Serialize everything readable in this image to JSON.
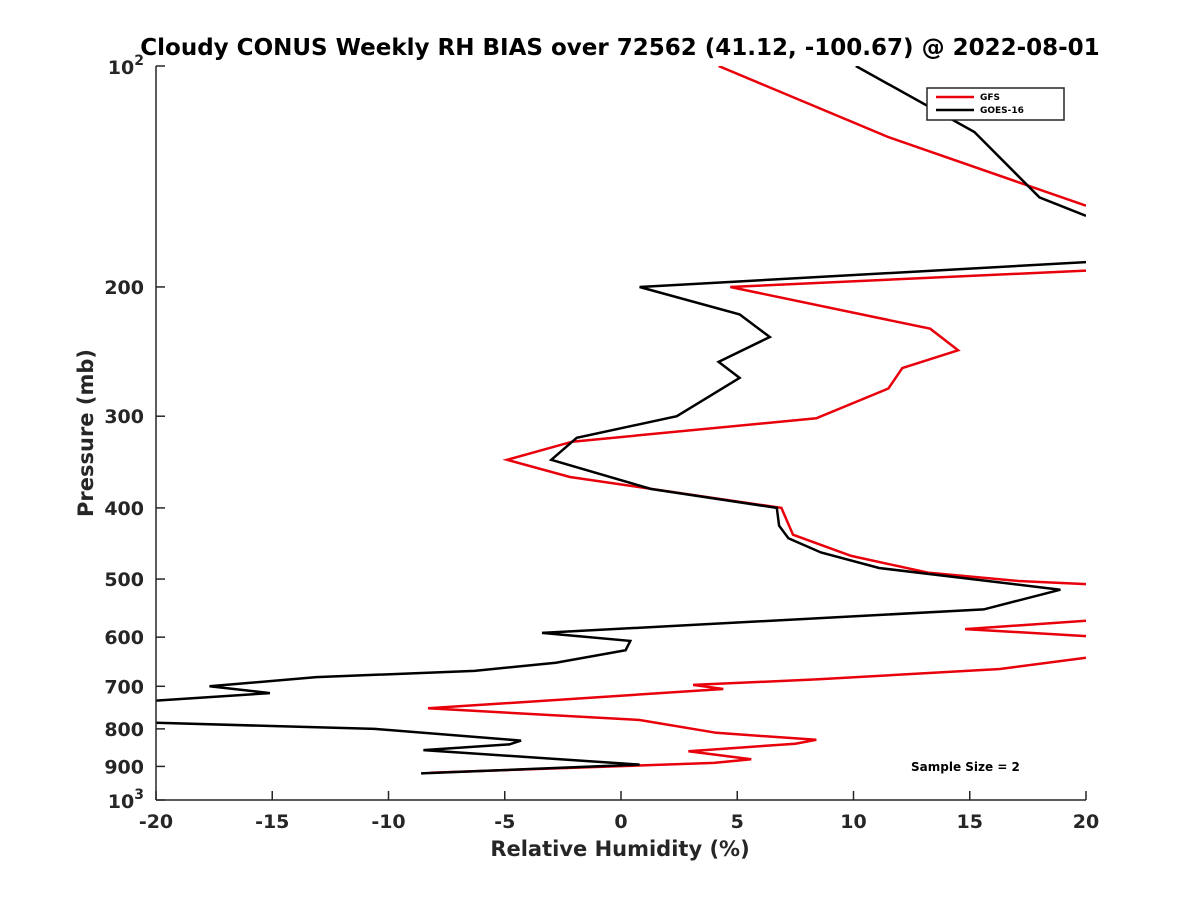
{
  "chart_data": {
    "type": "line",
    "title": "Cloudy CONUS Weekly RH BIAS over 72562 (41.12, -100.67) @ 2022-08-01",
    "xlabel": "Relative Humidity (%)",
    "ylabel": "Pressure (mb)",
    "xlim": [
      -20,
      20
    ],
    "ylim": [
      100,
      1000
    ],
    "yscale": "log",
    "y_reversed": true,
    "grid": false,
    "xticks": [
      -20,
      -15,
      -10,
      -5,
      0,
      5,
      10,
      15,
      20
    ],
    "xtick_labels": [
      "-20",
      "-15",
      "-10",
      "-5",
      "0",
      "5",
      "10",
      "15",
      "20"
    ],
    "yticks": [
      100,
      200,
      300,
      400,
      500,
      600,
      700,
      800,
      900,
      1000
    ],
    "ytick_labels": [
      {
        "base": "10",
        "sup": "2"
      },
      {
        "base": "200"
      },
      {
        "base": "300"
      },
      {
        "base": "400"
      },
      {
        "base": "500"
      },
      {
        "base": "600"
      },
      {
        "base": "700"
      },
      {
        "base": "800"
      },
      {
        "base": "900"
      },
      {
        "base": "10",
        "sup": "3"
      }
    ],
    "legend_position": "top-right",
    "annotation": "Sample Size = 2",
    "series": [
      {
        "name": "GFS",
        "color": "#e8000b",
        "points": [
          [
            4.2,
            100
          ],
          [
            11.5,
            125
          ],
          [
            20,
            155
          ],
          [
            null,
            165
          ],
          [
            20,
            190
          ],
          [
            4.7,
            200
          ],
          [
            13.3,
            228
          ],
          [
            14.5,
            244
          ],
          [
            12.1,
            258
          ],
          [
            11.5,
            275
          ],
          [
            8.4,
            302
          ],
          [
            -2.1,
            325
          ],
          [
            -4.9,
            344
          ],
          [
            -2.2,
            363
          ],
          [
            6.9,
            400
          ],
          [
            7.4,
            435
          ],
          [
            9.9,
            465
          ],
          [
            13.2,
            490
          ],
          [
            17.1,
            503
          ],
          [
            20,
            508
          ],
          [
            null,
            540
          ],
          [
            20,
            570
          ],
          [
            14.8,
            585
          ],
          [
            20,
            598
          ],
          [
            null,
            620
          ],
          [
            20,
            640
          ],
          [
            16.3,
            663
          ],
          [
            8.4,
            685
          ],
          [
            3.1,
            697
          ],
          [
            4.4,
            706
          ],
          [
            -8.3,
            750
          ],
          [
            0.8,
            778
          ],
          [
            4.1,
            810
          ],
          [
            8.4,
            828
          ],
          [
            7.5,
            838
          ],
          [
            2.9,
            858
          ],
          [
            5.6,
            880
          ],
          [
            4.0,
            890
          ],
          [
            -8.2,
            918
          ]
        ]
      },
      {
        "name": "GOES-16",
        "color": "#000000",
        "points": [
          [
            10.1,
            100
          ],
          [
            15.2,
            123
          ],
          [
            18.0,
            151
          ],
          [
            20,
            160
          ],
          [
            null,
            175
          ],
          [
            20,
            185
          ],
          [
            0.8,
            200
          ],
          [
            5.1,
            218
          ],
          [
            6.4,
            234
          ],
          [
            4.2,
            253
          ],
          [
            5.1,
            266
          ],
          [
            2.4,
            300
          ],
          [
            -1.9,
            321
          ],
          [
            -2.1,
            325
          ],
          [
            -3.0,
            344
          ],
          [
            1.3,
            377
          ],
          [
            6.7,
            400
          ],
          [
            6.8,
            423
          ],
          [
            7.2,
            440
          ],
          [
            8.6,
            460
          ],
          [
            11.1,
            483
          ],
          [
            18.9,
            517
          ],
          [
            15.6,
            550
          ],
          [
            -3.4,
            592
          ],
          [
            0.4,
            607
          ],
          [
            0.2,
            625
          ],
          [
            -2.8,
            650
          ],
          [
            -6.3,
            667
          ],
          [
            -13.1,
            680
          ],
          [
            -17.7,
            700
          ],
          [
            -15.1,
            715
          ],
          [
            -20,
            732
          ],
          [
            null,
            755
          ],
          [
            -20,
            785
          ],
          [
            -10.6,
            800
          ],
          [
            -4.3,
            830
          ],
          [
            -4.8,
            840
          ],
          [
            -8.5,
            855
          ],
          [
            0.8,
            895
          ],
          [
            -8.6,
            920
          ]
        ]
      }
    ]
  }
}
